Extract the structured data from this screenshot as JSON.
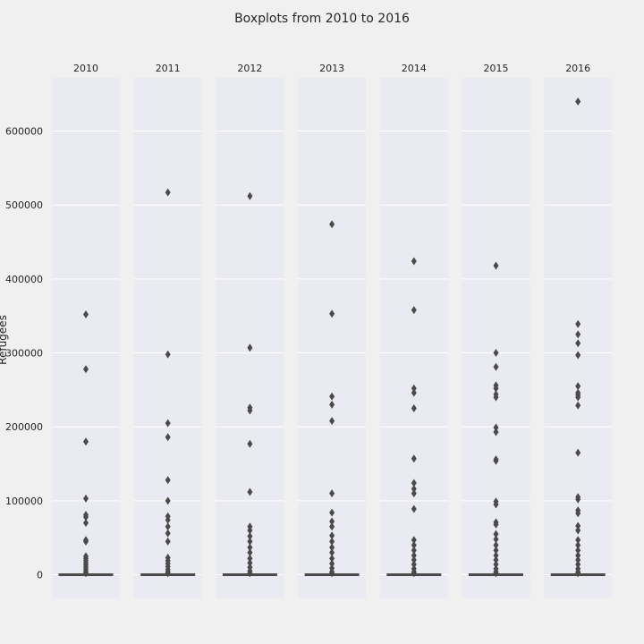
{
  "chart_data": {
    "type": "boxplot",
    "title": "Boxplots from 2010 to 2016",
    "ylabel": "Refugees",
    "ylim": [
      -32000,
      672000
    ],
    "yticks": [
      0,
      100000,
      200000,
      300000,
      400000,
      500000,
      600000
    ],
    "ytick_labels": [
      "0",
      "100000",
      "200000",
      "300000",
      "400000",
      "500000",
      "600000"
    ],
    "grid": true,
    "colors": {
      "background": "#f0f0f0",
      "panel": "#eaeaf2",
      "grid": "#ffffff",
      "box": "#4a4a4a"
    },
    "facets": [
      {
        "label": "2010",
        "median": 0,
        "q1": 0,
        "q3": 0,
        "outliers": [
          352000,
          278000,
          180000,
          103000,
          81000,
          78000,
          70000,
          47000,
          45000,
          25000,
          22000,
          19000,
          16000,
          13000,
          10000,
          7000,
          4000,
          2000
        ]
      },
      {
        "label": "2011",
        "median": 0,
        "q1": 0,
        "q3": 0,
        "outliers": [
          517000,
          298000,
          205000,
          186000,
          128000,
          100000,
          79000,
          74000,
          65000,
          56000,
          45000,
          23000,
          19000,
          15000,
          11000,
          7000,
          4000,
          2000
        ]
      },
      {
        "label": "2012",
        "median": 0,
        "q1": 0,
        "q3": 0,
        "outliers": [
          512000,
          307000,
          226000,
          222000,
          177000,
          112000,
          65000,
          60000,
          52000,
          45000,
          37000,
          30000,
          22000,
          16000,
          10000,
          5000,
          2000
        ]
      },
      {
        "label": "2013",
        "median": 0,
        "q1": 0,
        "q3": 0,
        "outliers": [
          474000,
          353000,
          241000,
          230000,
          208000,
          110000,
          84000,
          72000,
          65000,
          53000,
          45000,
          37000,
          30000,
          22000,
          15000,
          9000,
          4000,
          2000
        ]
      },
      {
        "label": "2014",
        "median": 0,
        "q1": 0,
        "q3": 0,
        "outliers": [
          424000,
          358000,
          252000,
          246000,
          225000,
          157000,
          124000,
          116000,
          110000,
          89000,
          47000,
          40000,
          33000,
          26000,
          20000,
          14000,
          8000,
          4000,
          2000
        ]
      },
      {
        "label": "2015",
        "median": 0,
        "q1": 0,
        "q3": 0,
        "outliers": [
          418000,
          300000,
          281000,
          256000,
          252000,
          244000,
          240000,
          199000,
          193000,
          156000,
          154000,
          99000,
          95000,
          71000,
          68000,
          55000,
          48000,
          40000,
          33000,
          26000,
          20000,
          14000,
          8000,
          4000,
          2000
        ]
      },
      {
        "label": "2016",
        "median": 0,
        "q1": 0,
        "q3": 0,
        "outliers": [
          640000,
          339000,
          325000,
          313000,
          297000,
          255000,
          246000,
          243000,
          240000,
          229000,
          165000,
          105000,
          102000,
          87000,
          83000,
          66000,
          60000,
          47000,
          40000,
          33000,
          26000,
          20000,
          14000,
          8000,
          4000,
          2000
        ]
      }
    ]
  }
}
